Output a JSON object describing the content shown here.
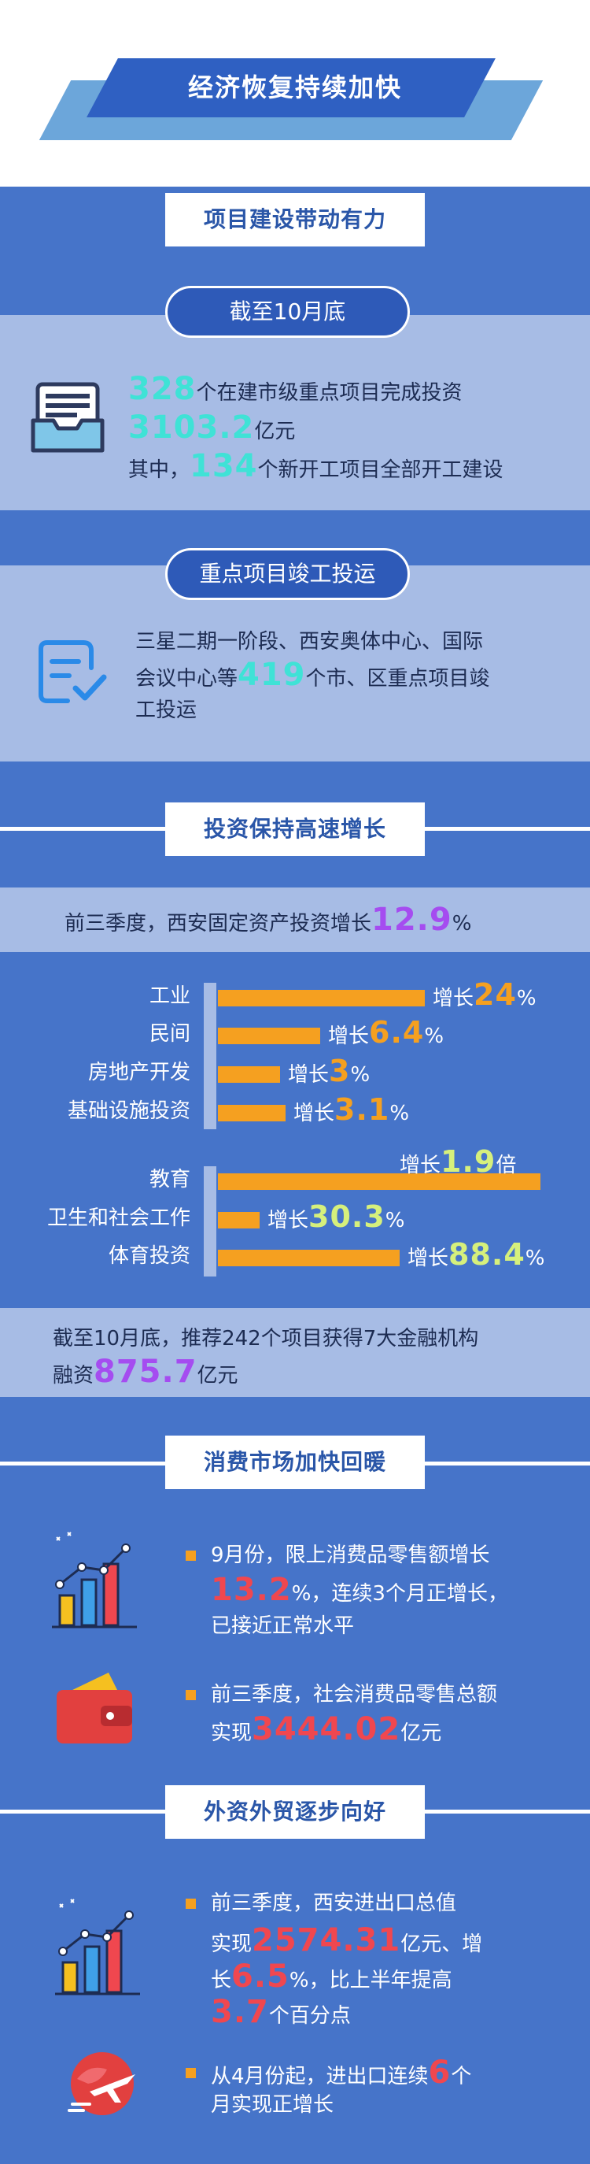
{
  "banner": "经济恢复持续加快",
  "project": {
    "heading": "项目建设带动有力",
    "block1": {
      "pill": "截至10月底",
      "lines": [
        [
          "328",
          "个在建市级重点项目完成投资"
        ],
        [
          "3103.2",
          "亿元"
        ],
        [
          "其中，",
          "134",
          "个新开工项目全部开工建设"
        ]
      ]
    },
    "block2": {
      "pill": "重点项目竣工投运",
      "lines": [
        [
          "三星二期一阶段、西安奥体中心、国际"
        ],
        [
          "会议中心等",
          "419",
          "个市、区重点项目竣"
        ],
        [
          "工投运"
        ]
      ]
    }
  },
  "investment": {
    "heading": "投资保持高速增长",
    "summary": [
      [
        "前三季度，西安固定资产投资增长",
        "12.9",
        "%"
      ]
    ],
    "groups": [
      [
        {
          "label": "工业",
          "prefix": "增长",
          "value": "24",
          "unit": "%"
        },
        {
          "label": "民间",
          "prefix": "增长",
          "value": "6.4",
          "unit": "%"
        },
        {
          "label": "房地产开发",
          "prefix": "增长",
          "value": "3",
          "unit": "%"
        },
        {
          "label": "基础设施投资",
          "prefix": "增长",
          "value": "3.1",
          "unit": "%"
        }
      ],
      [
        {
          "label": "教育",
          "prefix": "增长",
          "value": "1.9",
          "unit": "倍"
        },
        {
          "label": "卫生和社会工作",
          "prefix": "增长",
          "value": "30.3",
          "unit": "%"
        },
        {
          "label": "体育投资",
          "prefix": "增长",
          "value": "88.4",
          "unit": "%"
        }
      ]
    ],
    "financing": [
      [
        "截至10月底，推荐242个项目获得7大金融机构"
      ],
      [
        "融资",
        "875.7",
        "亿元"
      ]
    ]
  },
  "consumption": {
    "heading": "消费市场加快回暖",
    "items": [
      [
        [
          "9月份，限上消费品零售额增长"
        ],
        [
          "13.2",
          "%，连续3个月正增长，"
        ],
        [
          "已接近正常水平"
        ]
      ],
      [
        [
          "前三季度，社会消费品零售总额"
        ],
        [
          "实现",
          "3444.02",
          "亿元"
        ]
      ]
    ]
  },
  "trade": {
    "heading": "外资外贸逐步向好",
    "items": [
      [
        [
          "前三季度，西安进出口总值"
        ],
        [
          "实现",
          "2574.31",
          "亿元、增"
        ],
        [
          "长",
          "6.5",
          "%，比上半年提高"
        ],
        [
          "3.7",
          "个百分点"
        ]
      ],
      [
        [
          "从4月份起，进出口连续",
          "6",
          "个"
        ],
        [
          "月实现正增长"
        ]
      ]
    ]
  }
}
